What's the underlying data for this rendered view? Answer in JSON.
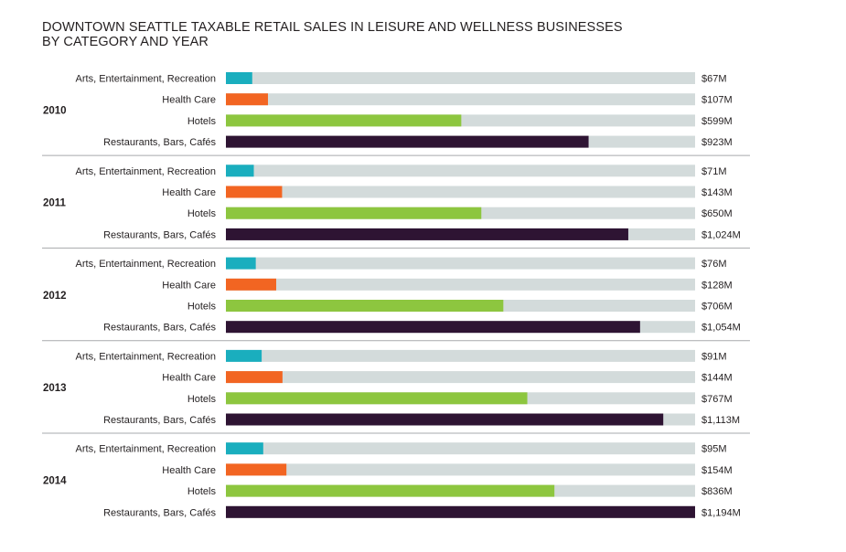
{
  "chart_data": {
    "type": "bar",
    "orientation": "horizontal",
    "title_lines": [
      "DOWNTOWN SEATTLE TAXABLE RETAIL SALES IN LEISURE AND WELLNESS BUSINESSES",
      "BY CATEGORY AND YEAR"
    ],
    "xlim": [
      0,
      1194
    ],
    "grid": false,
    "legend": "none",
    "categories": [
      "Arts, Entertainment, Recreation",
      "Health Care",
      "Hotels",
      "Restaurants, Bars, Cafés"
    ],
    "colors": {
      "Arts, Entertainment, Recreation": "#1aaebe",
      "Health Care": "#f26522",
      "Hotels": "#8dc63f",
      "Restaurants, Bars, Cafés": "#2e1433"
    },
    "track_color": "#d3dbdb",
    "separator_color": "#a7a9ac",
    "groups": [
      {
        "year": "2010",
        "values": [
          67,
          107,
          599,
          923
        ],
        "labels": [
          "$67M",
          "$107M",
          "$599M",
          "$923M"
        ]
      },
      {
        "year": "2011",
        "values": [
          71,
          143,
          650,
          1024
        ],
        "labels": [
          "$71M",
          "$143M",
          "$650M",
          "$1,024M"
        ]
      },
      {
        "year": "2012",
        "values": [
          76,
          128,
          706,
          1054
        ],
        "labels": [
          "$76M",
          "$128M",
          "$706M",
          "$1,054M"
        ]
      },
      {
        "year": "2013",
        "values": [
          91,
          144,
          767,
          1113
        ],
        "labels": [
          "$91M",
          "$144M",
          "$767M",
          "$1,113M"
        ]
      },
      {
        "year": "2014",
        "values": [
          95,
          154,
          836,
          1194
        ],
        "labels": [
          "$95M",
          "$154M",
          "$836M",
          "$1,194M"
        ]
      }
    ]
  }
}
